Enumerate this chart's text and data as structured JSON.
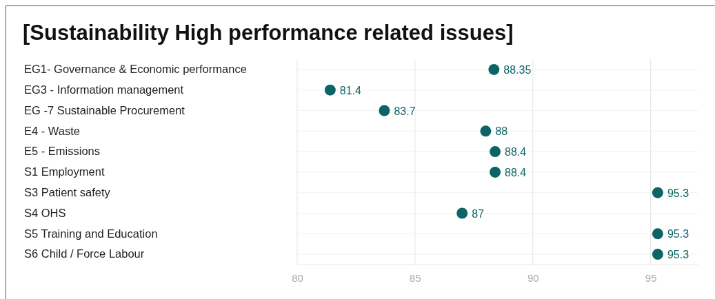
{
  "chart_data": {
    "type": "scatter",
    "orientation": "horizontal",
    "title": "[Sustainability High performance related issues]",
    "categories": [
      "EG1- Governance & Economic performance",
      "EG3 - Information management",
      "EG -7 Sustainable Procurement",
      "E4 - Waste",
      "E5 - Emissions",
      "S1 Employment",
      "S3 Patient safety",
      "S4 OHS",
      "S5 Training and Education",
      "S6 Child / Force Labour"
    ],
    "values": [
      88.35,
      81.4,
      83.7,
      88,
      88.4,
      88.4,
      95.3,
      87,
      95.3,
      95.3
    ],
    "color": "#0d6466",
    "marker": "circle",
    "data_labels": true,
    "grid": true,
    "xlim": [
      80,
      97
    ],
    "xticks": [
      80,
      85,
      90,
      95
    ]
  }
}
